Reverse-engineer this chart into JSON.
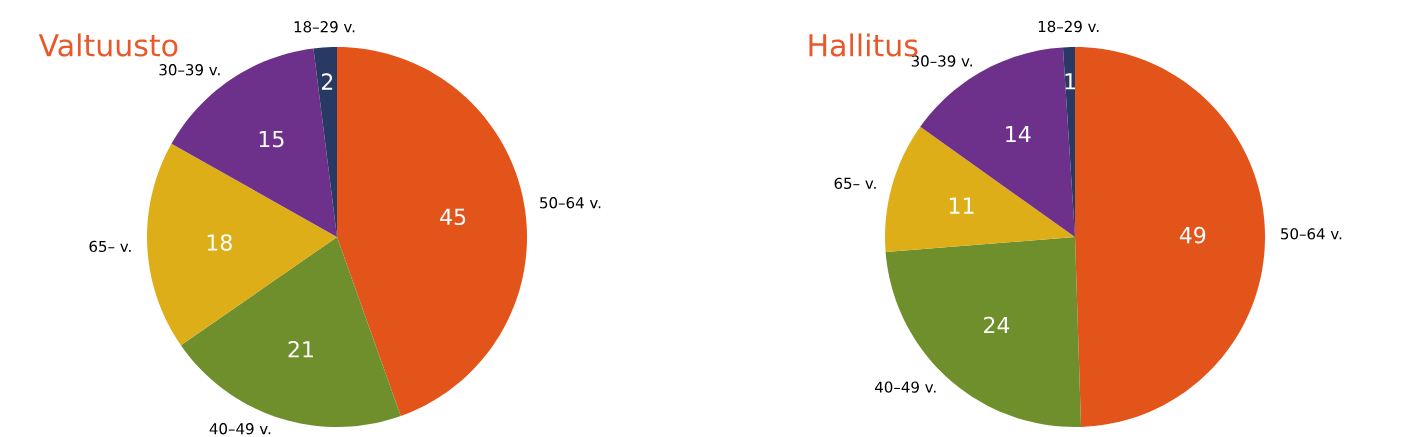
{
  "chart_data": [
    {
      "type": "pie",
      "title": "Valtuusto",
      "categories": [
        "50–64 v.",
        "40–49 v.",
        "65– v.",
        "30–39 v.",
        "18–29 v."
      ],
      "values": [
        45,
        21,
        18,
        15,
        2
      ],
      "colors": [
        "#e3541b",
        "#6f8e2c",
        "#deae18",
        "#6e318b",
        "#283a63"
      ],
      "data_labels": true
    },
    {
      "type": "pie",
      "title": "Hallitus",
      "categories": [
        "50–64 v.",
        "40–49 v.",
        "65– v.",
        "30–39 v.",
        "18–29 v."
      ],
      "values": [
        49,
        24,
        11,
        14,
        1
      ],
      "colors": [
        "#e3541b",
        "#6f8e2c",
        "#deae18",
        "#6e318b",
        "#283a63"
      ],
      "data_labels": true
    }
  ]
}
